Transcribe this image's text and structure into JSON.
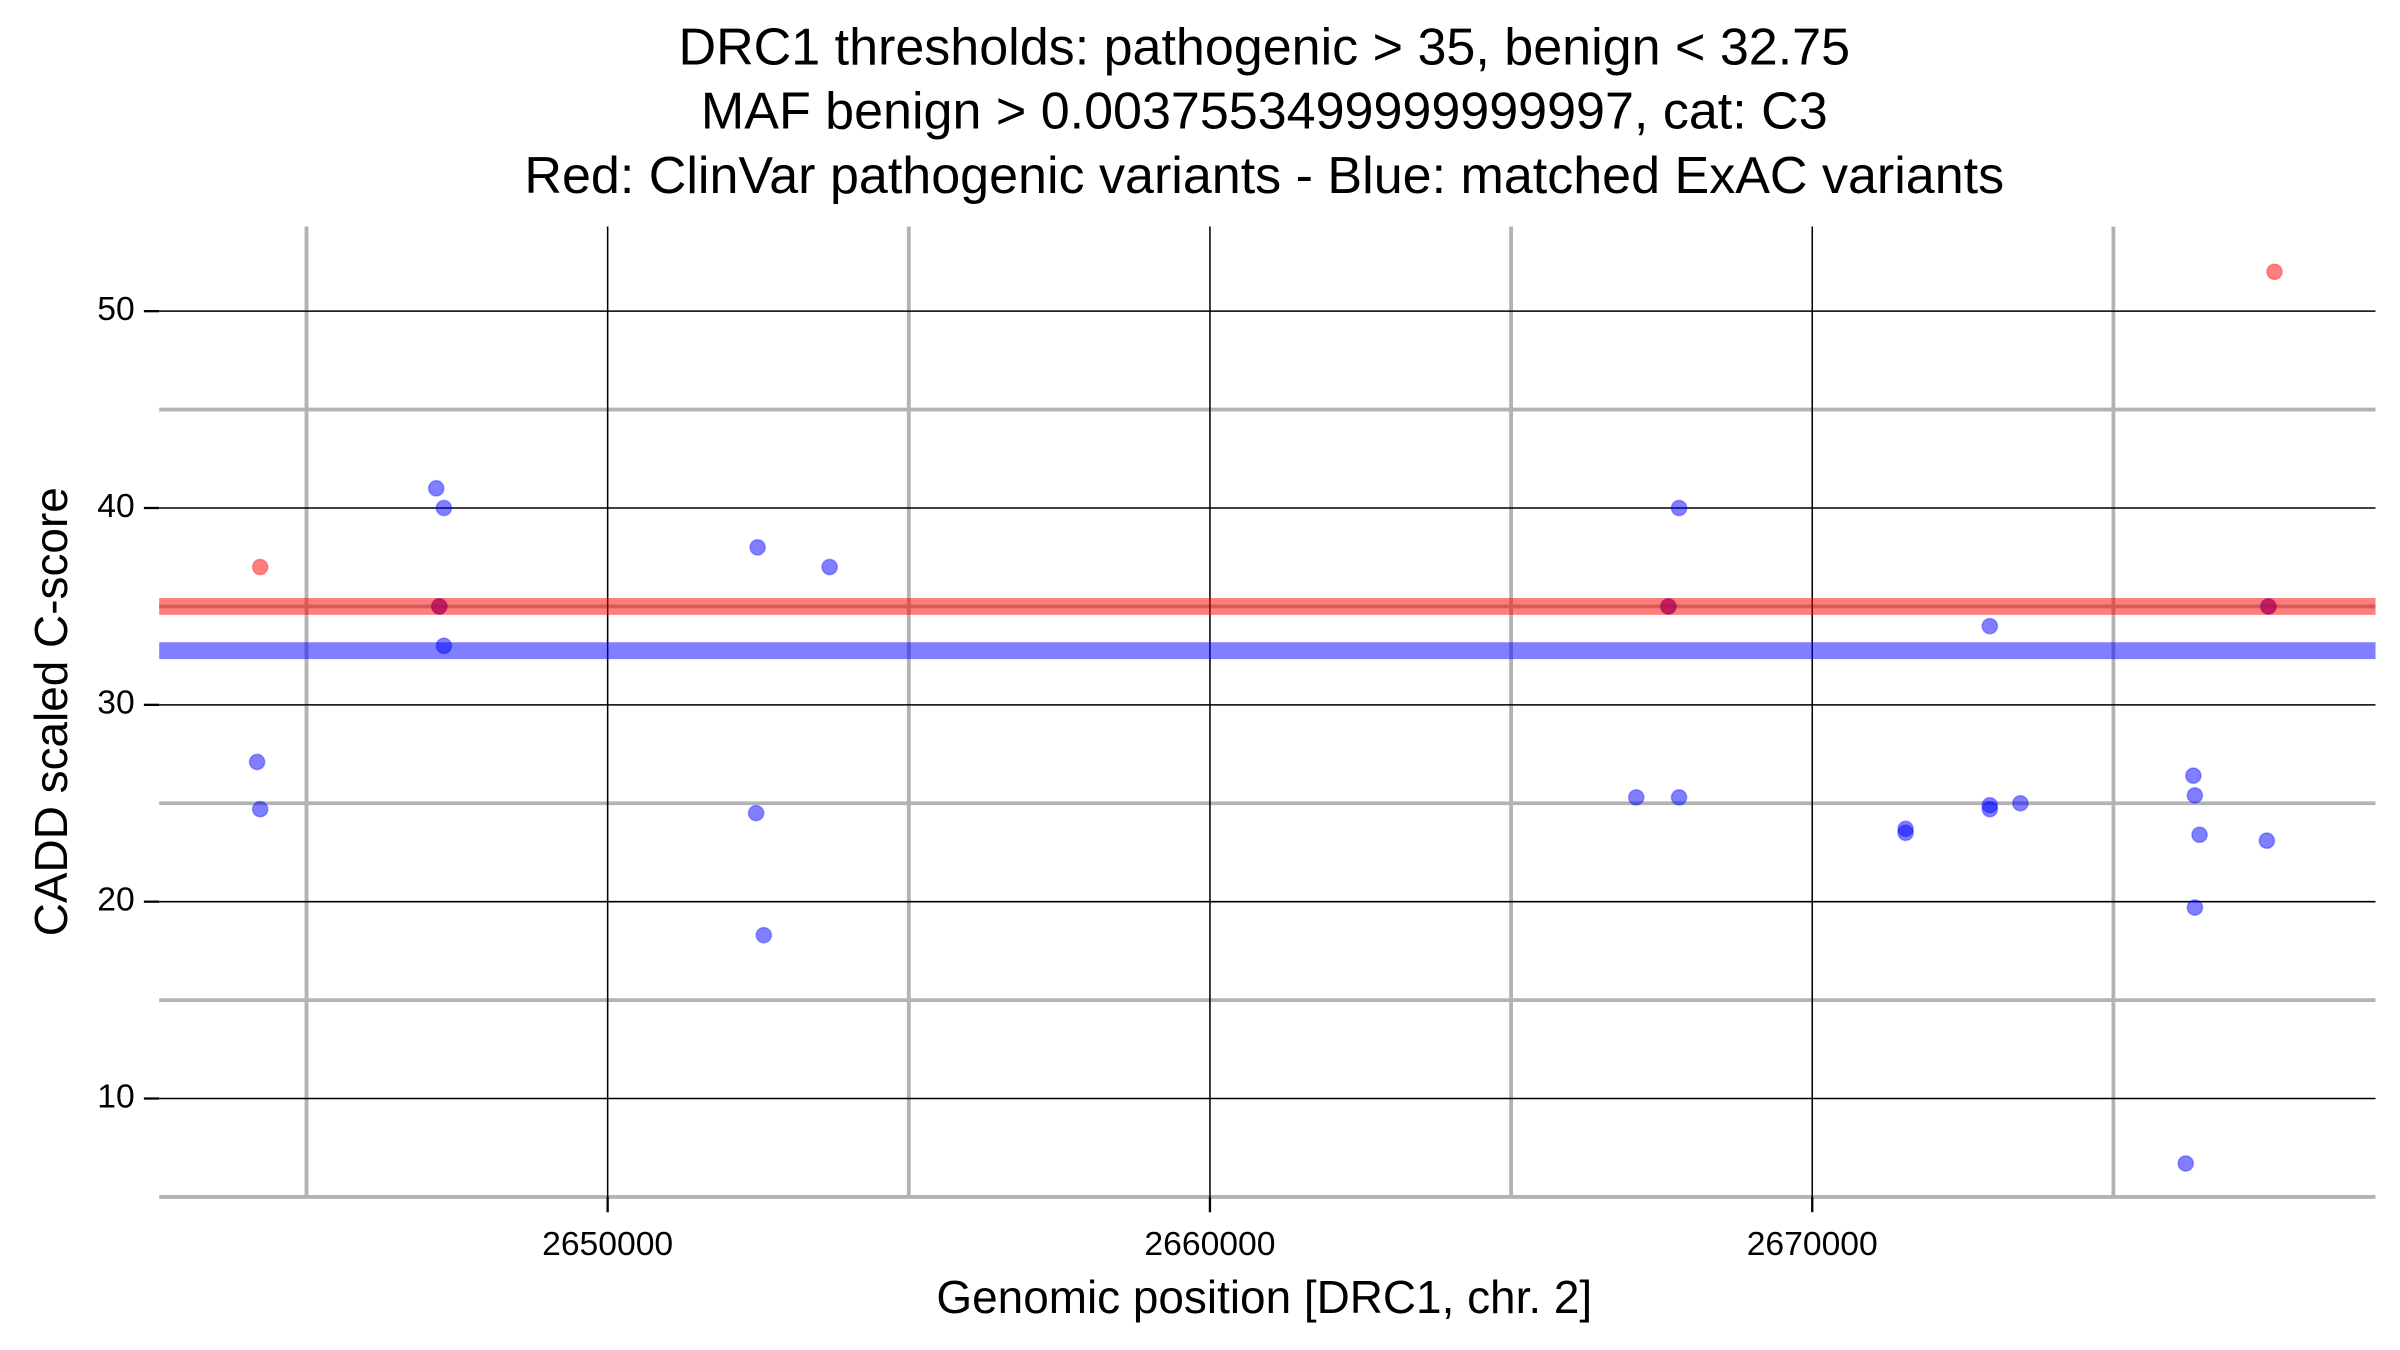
{
  "chart_data": {
    "type": "scatter",
    "title": [
      "DRC1 thresholds: pathogenic > 35, benign < 32.75",
      "MAF benign > 0.0037553499999999997, cat: C3",
      "Red: ClinVar pathogenic variants - Blue: matched ExAC variants"
    ],
    "x_label": "Genomic position [DRC1, chr. 2]",
    "y_label": "CADD scaled C-score",
    "xlim": [
      2642554,
      2679352
    ],
    "ylim": [
      5,
      54.3
    ],
    "xticks": [
      2650000,
      2660000,
      2670000
    ],
    "yticks": [
      10,
      20,
      30,
      40,
      50
    ],
    "xminor": [
      2645000,
      2655000,
      2665000,
      2675000
    ],
    "yminor": [
      5,
      15,
      25,
      35,
      45
    ],
    "grid": true,
    "thresholds": [
      {
        "value": 35,
        "color": "#ff0000"
      },
      {
        "value": 32.75,
        "color": "#0000ff"
      }
    ],
    "series": [
      {
        "color": "#0000ff",
        "x": [
          2644180,
          2644231,
          2647154,
          2647281,
          2647281,
          2647205,
          2652490,
          2652465,
          2652592,
          2653685,
          2667078,
          2667789,
          2667789,
          2667611,
          2671550,
          2671550,
          2672948,
          2672948,
          2672948,
          2673456,
          2676328,
          2676353,
          2676430,
          2676353,
          2676201,
          2677548,
          2677573
        ],
        "values": [
          27.1,
          24.7,
          41,
          40,
          33,
          35,
          38,
          24.5,
          18.3,
          37,
          25.3,
          40,
          25.3,
          35,
          23.7,
          23.5,
          34,
          24.9,
          24.7,
          25,
          26.4,
          25.4,
          23.4,
          19.7,
          6.7,
          23.1,
          35
        ]
      },
      {
        "color": "#ff0000",
        "x": [
          2644231,
          2647205,
          2667611,
          2677573,
          2677675
        ],
        "values": [
          37,
          35,
          35,
          35,
          52
        ]
      }
    ]
  }
}
